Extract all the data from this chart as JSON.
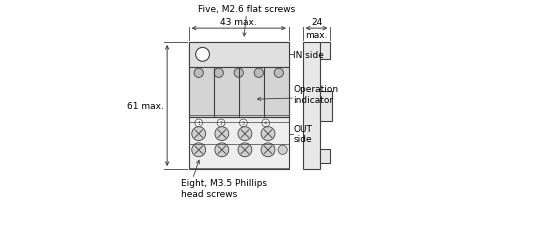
{
  "bg_color": "#ffffff",
  "line_color": "#404040",
  "text_color": "#000000",
  "dim_43": "43 max.",
  "dim_61": "61 max.",
  "dim_24_line1": "24",
  "dim_24_line2": "max.",
  "label_in": "IN side",
  "label_out": "OUT\nside",
  "label_op": "Operation\nindicator",
  "label_screws_top": "Five, M2.6 flat screws",
  "label_screws_bot": "Eight, M3.5 Phillips\nhead screws",
  "body_fc": "#eeeeee",
  "top_fc": "#e0e0e0",
  "mid_fc": "#d4d4d4",
  "side_fc": "#e8e8e8"
}
